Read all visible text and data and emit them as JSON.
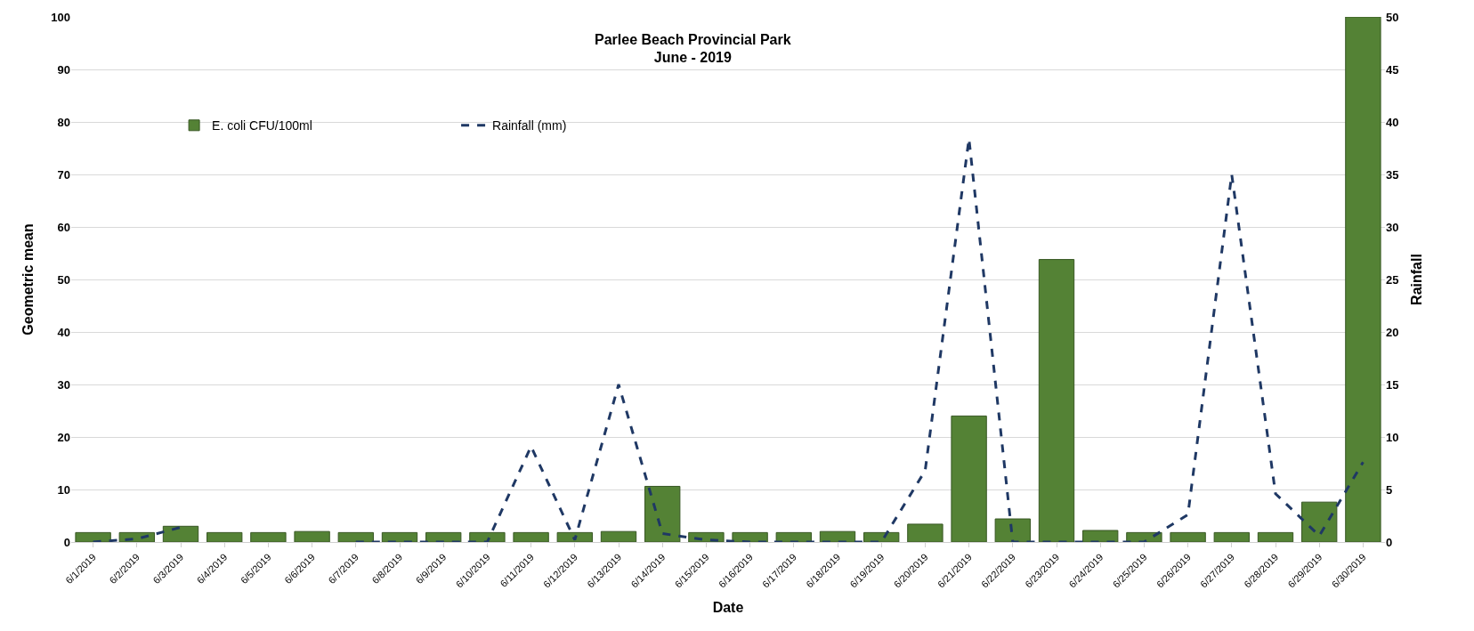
{
  "chart_data": {
    "type": "bar",
    "title": "Parlee Beach Provincial Park\nJune - 2019",
    "xlabel": "Date",
    "ylabel": "Geometric mean",
    "y2label": "Rainfall",
    "categories": [
      "6/1/2019",
      "6/2/2019",
      "6/3/2019",
      "6/4/2019",
      "6/5/2019",
      "6/6/2019",
      "6/7/2019",
      "6/8/2019",
      "6/9/2019",
      "6/10/2019",
      "6/11/2019",
      "6/12/2019",
      "6/13/2019",
      "6/14/2019",
      "6/15/2019",
      "6/16/2019",
      "6/17/2019",
      "6/18/2019",
      "6/19/2019",
      "6/20/2019",
      "6/21/2019",
      "6/22/2019",
      "6/23/2019",
      "6/24/2019",
      "6/25/2019",
      "6/26/2019",
      "6/27/2019",
      "6/28/2019",
      "6/29/2019",
      "6/30/2019"
    ],
    "series": [
      {
        "name": "E. coli CFU/100ml",
        "color": "#548235",
        "values": [
          1.8,
          1.8,
          3,
          1.8,
          1.8,
          2,
          1.8,
          1.8,
          1.8,
          1.8,
          1.8,
          1.8,
          2,
          10.6,
          1.8,
          1.8,
          1.8,
          2,
          1.8,
          3.4,
          24,
          4.4,
          53.8,
          2.2,
          1.8,
          1.8,
          1.8,
          1.8,
          7.6,
          100
        ]
      },
      {
        "name": "Rainfall (mm)",
        "type": "line",
        "axis": "y2",
        "color": "#1f3864",
        "line_style": "dashed",
        "values": [
          0,
          0.3,
          1.4,
          null,
          null,
          null,
          0,
          0,
          0,
          0,
          9.1,
          0.2,
          15,
          0.8,
          0.2,
          0,
          0,
          0,
          0,
          6.8,
          38.4,
          0,
          0,
          0,
          0,
          2.6,
          35,
          4.6,
          0.6,
          7.6
        ]
      }
    ],
    "ylim": [
      0,
      100
    ],
    "yticks": [
      0,
      10,
      20,
      30,
      40,
      50,
      60,
      70,
      80,
      90,
      100
    ],
    "y2lim": [
      0,
      50
    ],
    "y2ticks": [
      0,
      5,
      10,
      15,
      20,
      25,
      30,
      35,
      40,
      45,
      50
    ],
    "grid": "y",
    "legend": "top left",
    "marker": "none"
  }
}
